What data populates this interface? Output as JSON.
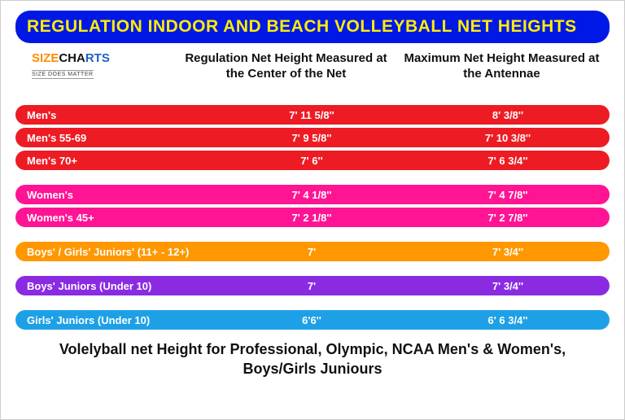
{
  "title": "REGULATION INDOOR AND BEACH VOLLEYBALL NET HEIGHTS",
  "title_bg": "#0018e6",
  "title_fg": "#ffed00",
  "logo": {
    "line1": "SIZE",
    "line2": "CHA",
    "line3": "RTS",
    "tagline": "SIZE DOES MATTER"
  },
  "headers": {
    "col1": "Regulation Net Height Measured at the Center of the Net",
    "col2": "Maximum Net Height Measured at the Antennae"
  },
  "colors": {
    "red": "#ed1c24",
    "pink": "#ff1493",
    "orange": "#ff9800",
    "purple": "#8a2be2",
    "blue": "#1ea0e6"
  },
  "rows": [
    {
      "label": "Men's",
      "c1": "7' 11 5/8''",
      "c2": "8' 3/8''",
      "color_key": "red"
    },
    {
      "label": "Men's 55-69",
      "c1": "7' 9 5/8''",
      "c2": "7' 10 3/8''",
      "color_key": "red"
    },
    {
      "label": "Men's 70+",
      "c1": "7' 6''",
      "c2": "7' 6 3/4''",
      "color_key": "red"
    },
    {
      "gap": true
    },
    {
      "label": "Women's",
      "c1": "7' 4 1/8''",
      "c2": "7' 4 7/8''",
      "color_key": "pink"
    },
    {
      "label": "Women's 45+",
      "c1": "7' 2 1/8''",
      "c2": "7' 2 7/8''",
      "color_key": "pink"
    },
    {
      "gap": true
    },
    {
      "label": "Boys' / Girls' Juniors' (11+ - 12+)",
      "c1": "7'",
      "c2": "7' 3/4''",
      "color_key": "orange"
    },
    {
      "gap": true
    },
    {
      "label": "Boys' Juniors (Under 10)",
      "c1": "7'",
      "c2": "7' 3/4''",
      "color_key": "purple"
    },
    {
      "gap": true
    },
    {
      "label": "Girls' Juniors (Under 10)",
      "c1": "6'6''",
      "c2": "6' 6 3/4''",
      "color_key": "blue"
    }
  ],
  "footer": "Volelyball net Height for Professional, Olympic, NCAA Men's & Women's, Boys/Girls Juniours"
}
